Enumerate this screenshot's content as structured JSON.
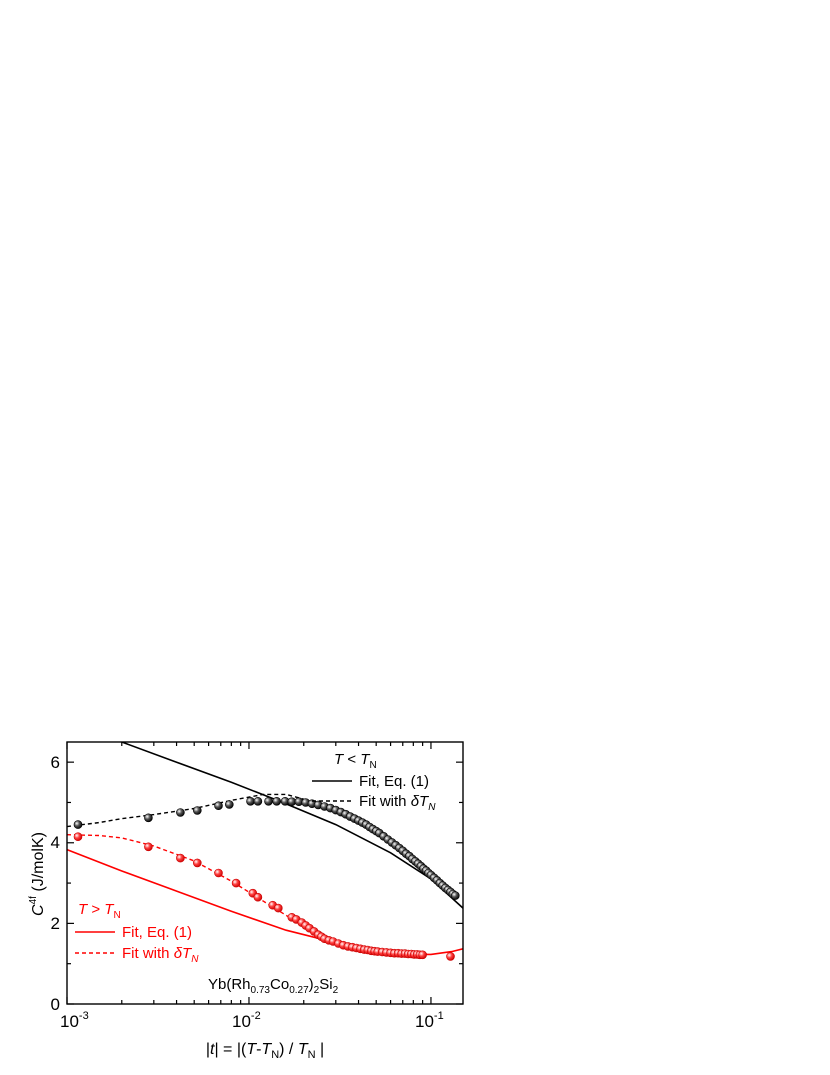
{
  "chart_data": {
    "type": "scatter",
    "xscale": "log",
    "xlim": [
      0.001,
      0.15
    ],
    "ylim": [
      0,
      6.5
    ],
    "x_ticks": [
      0.001,
      0.01,
      0.1
    ],
    "x_tick_labels": [
      {
        "base": "10",
        "exp": "-3"
      },
      {
        "base": "10",
        "exp": "-2"
      },
      {
        "base": "10",
        "exp": "-1"
      }
    ],
    "y_ticks": [
      0,
      2,
      4,
      6
    ],
    "y_tick_labels": [
      "0",
      "2",
      "4",
      "6"
    ],
    "xlabel": {
      "p1": "|",
      "p2": "t",
      "p3": "| = |(",
      "p4": "T",
      "p5": "-",
      "p6": "T",
      "p7": "N",
      "p8": ") / ",
      "p9": "T",
      "p10": "N",
      "p11": " |"
    },
    "ylabel": {
      "base": "C",
      "sup": "4f",
      "rest": " (J/molK)"
    },
    "annotation": {
      "p1": "Yb(Rh",
      "p2": "0.73",
      "p3": "Co",
      "p4": "0.27",
      "p5": ")",
      "p6": "2",
      "p7": "Si",
      "p8": "2"
    },
    "legend_below": {
      "color": "#000000",
      "title": {
        "t": "T",
        "op": " < ",
        "t2": "T",
        "sub": "N"
      },
      "solid_label": "Fit, Eq. (1)",
      "dashed_label": {
        "text": "Fit with ",
        "delta": "δ",
        "t": "T",
        "sub": "N"
      }
    },
    "legend_above": {
      "color": "#ff0000",
      "title": {
        "t": "T",
        "op": " > ",
        "t2": "T",
        "sub": "N"
      },
      "solid_label": "Fit, Eq. (1)",
      "dashed_label": {
        "text": "Fit with ",
        "delta": "δ",
        "t": "T",
        "sub": "N"
      }
    },
    "series": [
      {
        "color": "#000000",
        "points": [
          [
            0.00115,
            4.45
          ],
          [
            0.0028,
            4.62
          ],
          [
            0.0042,
            4.75
          ],
          [
            0.0052,
            4.8
          ],
          [
            0.0068,
            4.92
          ],
          [
            0.0078,
            4.95
          ],
          [
            0.0102,
            5.03
          ],
          [
            0.0112,
            5.03
          ],
          [
            0.0128,
            5.03
          ],
          [
            0.0142,
            5.03
          ],
          [
            0.0158,
            5.03
          ],
          [
            0.0172,
            5.02
          ],
          [
            0.0188,
            5.02
          ],
          [
            0.0205,
            5.0
          ],
          [
            0.0222,
            4.97
          ],
          [
            0.024,
            4.94
          ],
          [
            0.026,
            4.9
          ],
          [
            0.028,
            4.86
          ],
          [
            0.03,
            4.81
          ],
          [
            0.032,
            4.76
          ],
          [
            0.034,
            4.71
          ],
          [
            0.036,
            4.65
          ],
          [
            0.038,
            4.6
          ],
          [
            0.04,
            4.55
          ],
          [
            0.042,
            4.5
          ],
          [
            0.044,
            4.45
          ],
          [
            0.046,
            4.39
          ],
          [
            0.048,
            4.34
          ],
          [
            0.05,
            4.29
          ],
          [
            0.052,
            4.24
          ],
          [
            0.055,
            4.16
          ],
          [
            0.058,
            4.08
          ],
          [
            0.061,
            4.01
          ],
          [
            0.064,
            3.94
          ],
          [
            0.067,
            3.87
          ],
          [
            0.07,
            3.8
          ],
          [
            0.073,
            3.73
          ],
          [
            0.076,
            3.67
          ],
          [
            0.079,
            3.6
          ],
          [
            0.082,
            3.54
          ],
          [
            0.085,
            3.48
          ],
          [
            0.088,
            3.42
          ],
          [
            0.091,
            3.36
          ],
          [
            0.094,
            3.31
          ],
          [
            0.097,
            3.25
          ],
          [
            0.1,
            3.2
          ],
          [
            0.104,
            3.13
          ],
          [
            0.108,
            3.07
          ],
          [
            0.112,
            3.0
          ],
          [
            0.116,
            2.94
          ],
          [
            0.12,
            2.88
          ],
          [
            0.124,
            2.83
          ],
          [
            0.128,
            2.78
          ],
          [
            0.132,
            2.73
          ],
          [
            0.136,
            2.69
          ]
        ],
        "solid_fit": [
          [
            0.00125,
            6.9
          ],
          [
            0.002,
            6.5
          ],
          [
            0.004,
            6.0
          ],
          [
            0.008,
            5.5
          ],
          [
            0.015,
            5.02
          ],
          [
            0.03,
            4.45
          ],
          [
            0.06,
            3.75
          ],
          [
            0.1,
            3.1
          ],
          [
            0.15,
            2.38
          ]
        ],
        "dashed_fit": [
          [
            0.001,
            4.4
          ],
          [
            0.0015,
            4.5
          ],
          [
            0.002,
            4.6
          ],
          [
            0.003,
            4.7
          ],
          [
            0.005,
            4.85
          ],
          [
            0.008,
            5.05
          ],
          [
            0.012,
            5.2
          ],
          [
            0.016,
            5.2
          ],
          [
            0.02,
            5.08
          ],
          [
            0.03,
            4.75
          ],
          [
            0.05,
            4.25
          ],
          [
            0.08,
            3.62
          ],
          [
            0.1,
            3.25
          ],
          [
            0.13,
            2.8
          ]
        ]
      },
      {
        "color": "#ff0000",
        "points": [
          [
            0.00115,
            4.15
          ],
          [
            0.0028,
            3.9
          ],
          [
            0.0042,
            3.62
          ],
          [
            0.0052,
            3.5
          ],
          [
            0.0068,
            3.25
          ],
          [
            0.0085,
            3.0
          ],
          [
            0.0105,
            2.75
          ],
          [
            0.0112,
            2.65
          ],
          [
            0.0135,
            2.45
          ],
          [
            0.0145,
            2.38
          ],
          [
            0.0172,
            2.15
          ],
          [
            0.0182,
            2.1
          ],
          [
            0.0195,
            2.02
          ],
          [
            0.0205,
            1.95
          ],
          [
            0.0215,
            1.88
          ],
          [
            0.0228,
            1.8
          ],
          [
            0.024,
            1.72
          ],
          [
            0.025,
            1.67
          ],
          [
            0.026,
            1.62
          ],
          [
            0.0275,
            1.58
          ],
          [
            0.029,
            1.55
          ],
          [
            0.031,
            1.5
          ],
          [
            0.033,
            1.46
          ],
          [
            0.035,
            1.43
          ],
          [
            0.037,
            1.41
          ],
          [
            0.039,
            1.39
          ],
          [
            0.041,
            1.37
          ],
          [
            0.043,
            1.35
          ],
          [
            0.045,
            1.34
          ],
          [
            0.047,
            1.32
          ],
          [
            0.049,
            1.31
          ],
          [
            0.051,
            1.3
          ],
          [
            0.054,
            1.29
          ],
          [
            0.057,
            1.28
          ],
          [
            0.06,
            1.27
          ],
          [
            0.063,
            1.26
          ],
          [
            0.066,
            1.26
          ],
          [
            0.069,
            1.25
          ],
          [
            0.072,
            1.25
          ],
          [
            0.075,
            1.24
          ],
          [
            0.078,
            1.24
          ],
          [
            0.081,
            1.23
          ],
          [
            0.084,
            1.23
          ],
          [
            0.087,
            1.22
          ],
          [
            0.09,
            1.22
          ],
          [
            0.128,
            1.18
          ]
        ],
        "solid_fit": [
          [
            0.001,
            3.83
          ],
          [
            0.002,
            3.3
          ],
          [
            0.004,
            2.8
          ],
          [
            0.008,
            2.3
          ],
          [
            0.016,
            1.83
          ],
          [
            0.03,
            1.52
          ],
          [
            0.05,
            1.33
          ],
          [
            0.08,
            1.23
          ],
          [
            0.1,
            1.23
          ],
          [
            0.13,
            1.3
          ],
          [
            0.15,
            1.37
          ]
        ],
        "dashed_fit": [
          [
            0.001,
            4.2
          ],
          [
            0.0015,
            4.18
          ],
          [
            0.002,
            4.12
          ],
          [
            0.003,
            3.92
          ],
          [
            0.005,
            3.55
          ],
          [
            0.008,
            3.05
          ],
          [
            0.012,
            2.55
          ],
          [
            0.016,
            2.2
          ],
          [
            0.02,
            1.92
          ],
          [
            0.03,
            1.55
          ],
          [
            0.05,
            1.33
          ],
          [
            0.08,
            1.25
          ],
          [
            0.095,
            1.24
          ]
        ]
      }
    ]
  }
}
